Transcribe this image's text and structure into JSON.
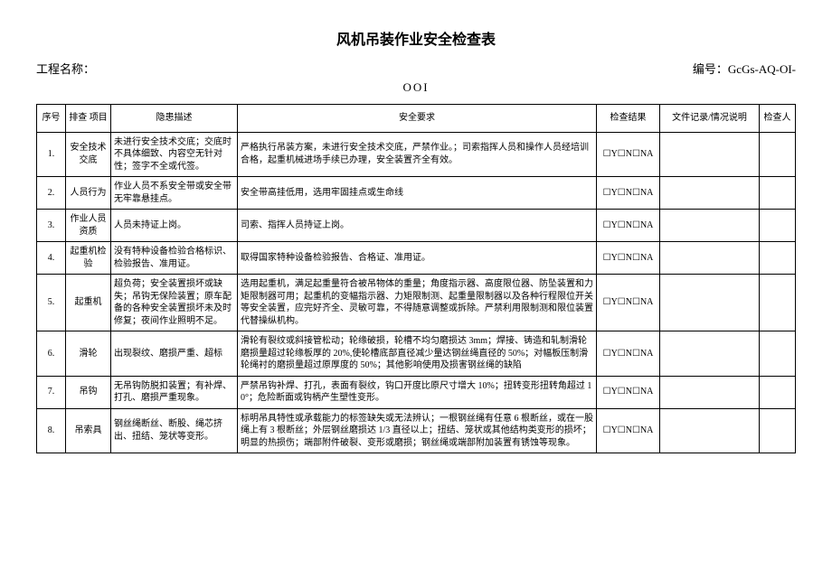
{
  "title": "风机吊装作业安全检查表",
  "project_label": "工程名称：",
  "doc_no_label": "编号：",
  "doc_no_value": "GcGs-AQ-OI-",
  "doc_no_suffix": "OOI",
  "headers": {
    "seq": "序号",
    "item": "排查\n项目",
    "desc": "隐患描述",
    "req": "安全要求",
    "result": "检查结果",
    "note": "文件记录/情况说明",
    "checker": "检查人"
  },
  "result_text": "☐Y☐N☐NA",
  "rows": [
    {
      "seq": "1.",
      "item": "安全技术交底",
      "desc": "未进行安全技术交底；交底时不具体细致、内容空无针对性；签字不全或代签。",
      "req": "严格执行吊装方案，未进行安全技术交底，严禁作业。；司索指挥人员和操作人员经培训合格，起重机械进场手续已办理，安全装置齐全有效。"
    },
    {
      "seq": "2.",
      "item": "人员行为",
      "desc": "作业人员不系安全带或安全带无牢靠悬挂点。",
      "req": "安全带高挂低用，选用牢固挂点或生命线"
    },
    {
      "seq": "3.",
      "item": "作业人员资质",
      "desc": "人员未持证上岗。",
      "req": "司索、指挥人员持证上岗。"
    },
    {
      "seq": "4.",
      "item": "起重机检验",
      "desc": "没有特种设备检验合格标识、检验报告、准用证。",
      "req": "取得国家特种设备检验报告、合格证、准用证。"
    },
    {
      "seq": "5.",
      "item": "起重机",
      "desc": "超负荷；安全装置损坏或缺失；吊钩无保险装置；原车配备的各种安全装置损坏未及时修复；夜间作业照明不足。",
      "req": "选用起重机，满足起重量符合被吊物体的重量；角度指示器、高度限位器、防坠装置和力矩限制器可用；起重机的变幅指示器、力矩限制测、起重量限制器以及各种行程限位开关等安全装置，应完好齐全、灵敏可靠，不得随意调整或拆除。严禁利用限制测和限位装置代替操纵机构。"
    },
    {
      "seq": "6.",
      "item": "滑轮",
      "desc": "出现裂纹、磨损严重、超标",
      "req": "滑轮有裂纹或斜接管松动；轮缘破损，轮槽不均匀磨损达 3mm；焊接、铸造和轧制滑轮磨损量超过轮缘板厚的 20%,使轮槽底部直径减少量达钢丝绳直径的 50%；对幅板压制滑轮绳衬的磨损量超过原厚度的 50%；其他影响使用及损害钢丝绳的缺陷"
    },
    {
      "seq": "7.",
      "item": "吊钩",
      "desc": "无吊钩防脱扣装置；有补焊、打孔、磨损严重现象。",
      "req": "严禁吊钩补焊、打孔，表面有裂纹，钩口开度比原尺寸增大 10%；扭转变形扭转角超过 10°；危险断面或钩柄产生塑性变形。"
    },
    {
      "seq": "8.",
      "item": "吊索具",
      "desc": "钢丝绳断丝、断股、绳芯挤出、扭结、笼状等变形。",
      "req": "标明吊具特性或承载能力的标签缺失或无法辨认；一根钢丝绳有任意 6 根断丝，或在一股绳上有 3 根断丝；外层钢丝磨损达 1/3 直径以上；扭结、笼状或其他结构类变形的损坏；明显的热损伤；端部附件破裂、变形或磨损；钢丝绳或端部附加装置有锈蚀等现象。"
    }
  ]
}
